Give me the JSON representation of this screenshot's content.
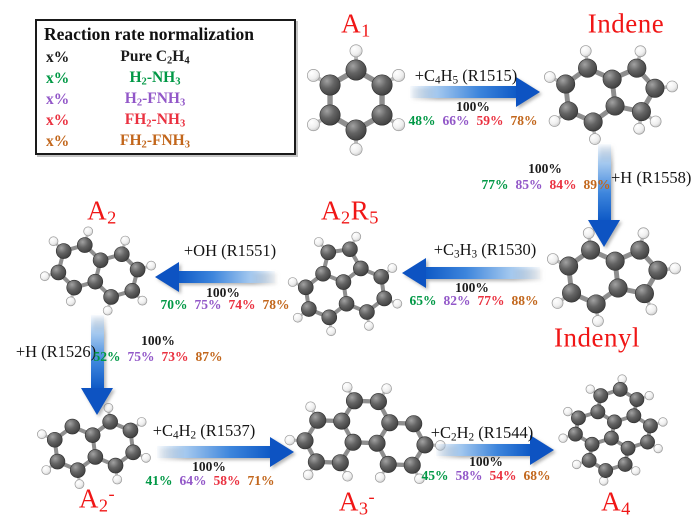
{
  "colors": {
    "black": "#1b1b1b",
    "green": "#009845",
    "purple": "#9257c8",
    "red": "#ea3140",
    "orange": "#c2661b",
    "label_red": "#f01616",
    "arrow_blue": "#0d53c2"
  },
  "legend": {
    "title": "Reaction rate normalization",
    "rows": [
      {
        "symbol": "x%",
        "condition": "Pure C_2H_4",
        "color_key": "black"
      },
      {
        "symbol": "x%",
        "condition": "H_2-NH_3",
        "color_key": "green"
      },
      {
        "symbol": "x%",
        "condition": "H_2-FNH_3",
        "color_key": "purple"
      },
      {
        "symbol": "x%",
        "condition": "FH_2-NH_3",
        "color_key": "red"
      },
      {
        "symbol": "x%",
        "condition": "FH_2-FNH_3",
        "color_key": "orange"
      }
    ]
  },
  "species": [
    {
      "id": "a1",
      "label": "A_1",
      "molecule": "benzene"
    },
    {
      "id": "indene",
      "label": "Indene",
      "molecule": "indene"
    },
    {
      "id": "indenyl",
      "label": "Indenyl",
      "molecule": "indenyl"
    },
    {
      "id": "a2r5",
      "label": "A_2R_5",
      "molecule": "acenaphthylene"
    },
    {
      "id": "a2",
      "label": "A_2",
      "molecule": "naphthalene"
    },
    {
      "id": "a2_radical",
      "label": "A_2^-",
      "molecule": "naphthyl"
    },
    {
      "id": "a3_radical",
      "label": "A_3^-",
      "molecule": "phenanthryl"
    },
    {
      "id": "a4",
      "label": "A_4",
      "molecule": "pyrene"
    }
  ],
  "reactions": [
    {
      "id": "R1515",
      "label": "+C_4H_5 (R1515)",
      "base": "100%",
      "pcts": [
        "48%",
        "66%",
        "59%",
        "78%"
      ]
    },
    {
      "id": "R1558",
      "label": "+H (R1558)",
      "base": "100%",
      "pcts": [
        "77%",
        "85%",
        "84%",
        "89%"
      ]
    },
    {
      "id": "R1530",
      "label": "+C_3H_3 (R1530)",
      "base": "100%",
      "pcts": [
        "65%",
        "82%",
        "77%",
        "88%"
      ]
    },
    {
      "id": "R1551",
      "label": "+OH (R1551)",
      "base": "100%",
      "pcts": [
        "70%",
        "75%",
        "74%",
        "78%"
      ]
    },
    {
      "id": "R1526",
      "label": "+H (R1526)",
      "base": "100%",
      "pcts": [
        "52%",
        "75%",
        "73%",
        "87%"
      ]
    },
    {
      "id": "R1537",
      "label": "+C_4H_2 (R1537)",
      "base": "100%",
      "pcts": [
        "41%",
        "64%",
        "58%",
        "71%"
      ]
    },
    {
      "id": "R1544",
      "label": "+C_2H_2 (R1544)",
      "base": "100%",
      "pcts": [
        "45%",
        "58%",
        "54%",
        "68%"
      ]
    }
  ]
}
